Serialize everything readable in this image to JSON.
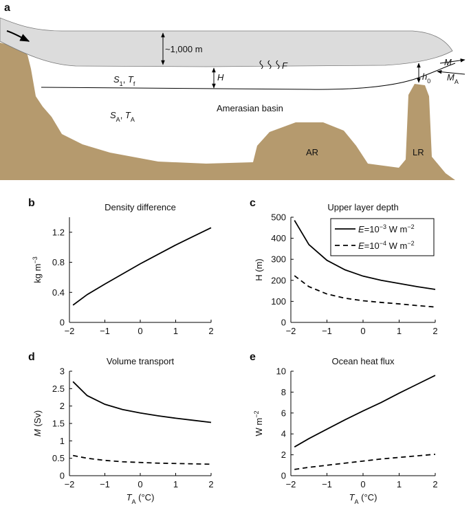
{
  "schematic": {
    "panel_label": "a",
    "labels": [
      "~1,000 m",
      [
        {
          "text": "F",
          "style": "italic"
        }
      ],
      [
        {
          "text": "H",
          "style": "italic"
        }
      ],
      [
        {
          "text": "S",
          "style": "italic"
        },
        {
          "text": "1",
          "style": "sub"
        },
        {
          "text": ", "
        },
        {
          "text": "T",
          "style": "italic"
        },
        {
          "text": "f",
          "style": "sub"
        }
      ],
      [
        {
          "text": "S",
          "style": "italic"
        },
        {
          "text": "A",
          "style": "sub"
        },
        {
          "text": ", "
        },
        {
          "text": "T",
          "style": "italic"
        },
        {
          "text": "A",
          "style": "sub"
        }
      ],
      "Amerasian basin",
      "AR",
      "LR",
      [
        {
          "text": "M",
          "style": "italic"
        }
      ],
      [
        {
          "text": "h",
          "style": "italic"
        },
        {
          "text": "0",
          "style": "sub"
        }
      ],
      [
        {
          "text": "M",
          "style": "italic"
        },
        {
          "text": "A",
          "style": "sub"
        }
      ]
    ]
  },
  "chart_data": [
    {
      "type": "line",
      "panel_label": "b",
      "title": "Density difference",
      "ylabel": [
        {
          "text": "kg m"
        },
        {
          "text": "−3",
          "style": "sup"
        }
      ],
      "x": [
        -1.9,
        -1.5,
        -1,
        -0.5,
        0,
        0.5,
        1,
        1.5,
        2
      ],
      "series": [
        {
          "color": "#000000",
          "style": "solid",
          "values": [
            0.23,
            0.37,
            0.51,
            0.645,
            0.78,
            0.905,
            1.03,
            1.145,
            1.26
          ]
        }
      ],
      "xlim": [
        -2,
        2
      ],
      "ylim": [
        0,
        1.4
      ],
      "xticks": [
        {
          "value": -2,
          "label": "−2"
        },
        {
          "value": -1,
          "label": "−1"
        },
        0,
        1,
        2
      ],
      "yticks": [
        0,
        0.4,
        0.8,
        1.2
      ]
    },
    {
      "type": "line",
      "panel_label": "c",
      "title": "Upper layer depth",
      "ylabel": "H (m)",
      "x": [
        -1.9,
        -1.5,
        -1,
        -0.5,
        0,
        0.5,
        1,
        1.5,
        2
      ],
      "series": [
        {
          "name": [
            {
              "text": "E",
              "style": "italic"
            },
            {
              "text": "=10"
            },
            {
              "text": "−3",
              "style": "sup"
            },
            {
              "text": " W m"
            },
            {
              "text": "−2",
              "style": "sup"
            }
          ],
          "color": "#000000",
          "style": "solid",
          "values": [
            485,
            370,
            295,
            250,
            220,
            200,
            185,
            170,
            157
          ]
        },
        {
          "name": [
            {
              "text": "E",
              "style": "italic"
            },
            {
              "text": "=10"
            },
            {
              "text": "−4",
              "style": "sup"
            },
            {
              "text": " W m"
            },
            {
              "text": "−2",
              "style": "sup"
            }
          ],
          "color": "#000000",
          "style": "dashed",
          "values": [
            222,
            170,
            135,
            115,
            103,
            95,
            88,
            80,
            73
          ]
        }
      ],
      "xlim": [
        -2,
        2
      ],
      "ylim": [
        0,
        500
      ],
      "xticks": [
        {
          "value": -2,
          "label": "−2"
        },
        {
          "value": -1,
          "label": "−1"
        },
        0,
        1,
        2
      ],
      "yticks": [
        0,
        100,
        200,
        300,
        400,
        500
      ],
      "legend": "upper right"
    },
    {
      "type": "line",
      "panel_label": "d",
      "title": "Volume transport",
      "ylabel": [
        {
          "text": "M",
          "style": "italic"
        },
        {
          "text": " (Sv)"
        }
      ],
      "xlabel": [
        {
          "text": "T",
          "style": "italic"
        },
        {
          "text": "A",
          "style": "sub"
        },
        {
          "text": " (°C)"
        }
      ],
      "x": [
        -1.9,
        -1.5,
        -1,
        -0.5,
        0,
        0.5,
        1,
        1.5,
        2
      ],
      "series": [
        {
          "color": "#000000",
          "style": "solid",
          "values": [
            2.7,
            2.3,
            2.05,
            1.9,
            1.8,
            1.72,
            1.65,
            1.59,
            1.53
          ]
        },
        {
          "color": "#000000",
          "style": "dashed",
          "values": [
            0.58,
            0.5,
            0.44,
            0.4,
            0.38,
            0.36,
            0.35,
            0.34,
            0.33
          ]
        }
      ],
      "xlim": [
        -2,
        2
      ],
      "ylim": [
        0,
        3
      ],
      "xticks": [
        {
          "value": -2,
          "label": "−2"
        },
        {
          "value": -1,
          "label": "−1"
        },
        0,
        1,
        2
      ],
      "yticks": [
        0,
        0.5,
        1,
        1.5,
        2,
        2.5,
        3
      ]
    },
    {
      "type": "line",
      "panel_label": "e",
      "title": "Ocean heat flux",
      "ylabel": [
        {
          "text": "W m"
        },
        {
          "text": "−2",
          "style": "sup"
        }
      ],
      "xlabel": [
        {
          "text": "T",
          "style": "italic"
        },
        {
          "text": "A",
          "style": "sub"
        },
        {
          "text": " (°C)"
        }
      ],
      "x": [
        -1.9,
        -1.5,
        -1,
        -0.5,
        0,
        0.5,
        1,
        1.5,
        2
      ],
      "series": [
        {
          "color": "#000000",
          "style": "solid",
          "values": [
            2.75,
            3.55,
            4.45,
            5.35,
            6.2,
            7.0,
            7.9,
            8.75,
            9.6
          ]
        },
        {
          "color": "#000000",
          "style": "dashed",
          "values": [
            0.6,
            0.8,
            1.0,
            1.2,
            1.4,
            1.6,
            1.75,
            1.9,
            2.05
          ]
        }
      ],
      "xlim": [
        -2,
        2
      ],
      "ylim": [
        0,
        10
      ],
      "xticks": [
        {
          "value": -2,
          "label": "−2"
        },
        {
          "value": -1,
          "label": "−1"
        },
        0,
        1,
        2
      ],
      "yticks": [
        0,
        2,
        4,
        6,
        8,
        10
      ]
    }
  ]
}
